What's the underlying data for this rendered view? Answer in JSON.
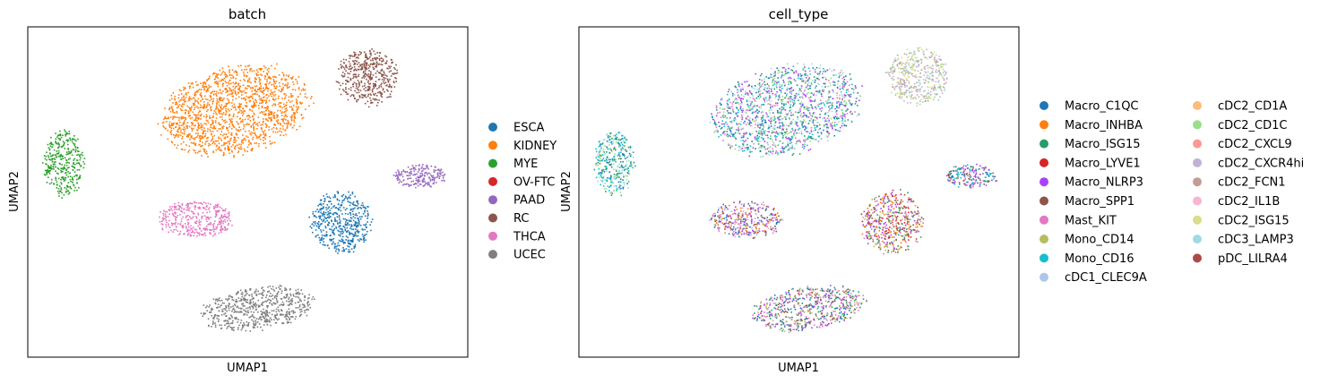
{
  "chart_data": [
    {
      "type": "scatter",
      "title": "batch",
      "xlabel": "UMAP1",
      "ylabel": "UMAP2",
      "xlim": [
        0,
        100
      ],
      "ylim": [
        0,
        100
      ],
      "legend_position": "right",
      "legend": [
        {
          "label": "ESCA",
          "color": "#1f77b4"
        },
        {
          "label": "KIDNEY",
          "color": "#ff7f0e"
        },
        {
          "label": "MYE",
          "color": "#2ca02c"
        },
        {
          "label": "OV-FTC",
          "color": "#d62728"
        },
        {
          "label": "PAAD",
          "color": "#9467bd"
        },
        {
          "label": "RC",
          "color": "#8c564b"
        },
        {
          "label": "THCA",
          "color": "#e377c2"
        },
        {
          "label": "UCEC",
          "color": "#7f7f7f"
        }
      ],
      "clusters": [
        {
          "name": "KIDNEY",
          "cx": 47,
          "cy": 75,
          "rx": 17,
          "ry": 13,
          "rot": -13,
          "colors": [
            "#ff7f0e"
          ]
        },
        {
          "name": "RC",
          "cx": 77,
          "cy": 85,
          "rx": 7,
          "ry": 8.5,
          "rot": 0,
          "colors": [
            "#8c564b"
          ]
        },
        {
          "name": "MYE",
          "cx": 8,
          "cy": 59,
          "rx": 4.5,
          "ry": 10,
          "rot": 0,
          "colors": [
            "#2ca02c"
          ]
        },
        {
          "name": "PAAD",
          "cx": 89,
          "cy": 55,
          "rx": 6,
          "ry": 3.5,
          "rot": 0,
          "colors": [
            "#9467bd"
          ]
        },
        {
          "name": "THCA",
          "cx": 38,
          "cy": 42,
          "rx": 8.5,
          "ry": 5.5,
          "rot": 0,
          "colors": [
            "#e377c2"
          ]
        },
        {
          "name": "ESCA",
          "cx": 71,
          "cy": 41,
          "rx": 7,
          "ry": 9.5,
          "rot": 10,
          "colors": [
            "#1f77b4"
          ]
        },
        {
          "name": "UCEC",
          "cx": 52,
          "cy": 15,
          "rx": 13,
          "ry": 6.5,
          "rot": -8,
          "colors": [
            "#7f7f7f"
          ]
        }
      ]
    },
    {
      "type": "scatter",
      "title": "cell_type",
      "xlabel": "UMAP1",
      "ylabel": "UMAP2",
      "xlim": [
        0,
        100
      ],
      "ylim": [
        0,
        100
      ],
      "legend_position": "right",
      "legend": [
        {
          "label": "Macro_C1QC",
          "color": "#1f77b4"
        },
        {
          "label": "Macro_INHBA",
          "color": "#ff7f0e"
        },
        {
          "label": "Macro_ISG15",
          "color": "#279e68"
        },
        {
          "label": "Macro_LYVE1",
          "color": "#d62728"
        },
        {
          "label": "Macro_NLRP3",
          "color": "#aa40fc"
        },
        {
          "label": "Macro_SPP1",
          "color": "#8c564b"
        },
        {
          "label": "Mast_KIT",
          "color": "#e377c2"
        },
        {
          "label": "Mono_CD14",
          "color": "#b5bd61"
        },
        {
          "label": "Mono_CD16",
          "color": "#17becf"
        },
        {
          "label": "cDC1_CLEC9A",
          "color": "#aec7e8"
        },
        {
          "label": "cDC2_CD1A",
          "color": "#ffbb78"
        },
        {
          "label": "cDC2_CD1C",
          "color": "#98df8a"
        },
        {
          "label": "cDC2_CXCL9",
          "color": "#ff9896"
        },
        {
          "label": "cDC2_CXCR4hi",
          "color": "#c5b0d5"
        },
        {
          "label": "cDC2_FCN1",
          "color": "#c49c94"
        },
        {
          "label": "cDC2_IL1B",
          "color": "#f7b6d2"
        },
        {
          "label": "cDC2_ISG15",
          "color": "#dbdb8d"
        },
        {
          "label": "cDC3_LAMP3",
          "color": "#9edae5"
        },
        {
          "label": "pDC_LILRA4",
          "color": "#ad494a"
        }
      ],
      "clusters": [
        {
          "name": "KIDNEY",
          "cx": 47,
          "cy": 75,
          "rx": 17,
          "ry": 13,
          "rot": -13,
          "colors": [
            "#279e68",
            "#17becf",
            "#1f77b4",
            "#98df8a",
            "#aa40fc",
            "#e377c2",
            "#9edae5"
          ]
        },
        {
          "name": "RC",
          "cx": 77,
          "cy": 85,
          "rx": 7,
          "ry": 8.5,
          "rot": 0,
          "colors": [
            "#dbdb8d",
            "#c5b0d5",
            "#98df8a",
            "#c49c94",
            "#aec7e8"
          ]
        },
        {
          "name": "MYE",
          "cx": 8,
          "cy": 59,
          "rx": 4.5,
          "ry": 10,
          "rot": 0,
          "colors": [
            "#279e68",
            "#17becf",
            "#1f77b4",
            "#98df8a",
            "#9edae5"
          ]
        },
        {
          "name": "PAAD",
          "cx": 89,
          "cy": 55,
          "rx": 6,
          "ry": 3.5,
          "rot": 0,
          "colors": [
            "#1f77b4",
            "#17becf",
            "#e377c2",
            "#aa40fc",
            "#279e68",
            "#8c564b"
          ]
        },
        {
          "name": "THCA",
          "cx": 38,
          "cy": 42,
          "rx": 8.5,
          "ry": 5.5,
          "rot": 0,
          "colors": [
            "#aa40fc",
            "#ff7f0e",
            "#1f77b4",
            "#e377c2",
            "#8c564b",
            "#c5b0d5"
          ]
        },
        {
          "name": "ESCA",
          "cx": 71,
          "cy": 41,
          "rx": 7,
          "ry": 9.5,
          "rot": 10,
          "colors": [
            "#d62728",
            "#8c564b",
            "#aa40fc",
            "#b5bd61",
            "#ff7f0e",
            "#e377c2",
            "#279e68"
          ]
        },
        {
          "name": "UCEC",
          "cx": 52,
          "cy": 15,
          "rx": 13,
          "ry": 6.5,
          "rot": -8,
          "colors": [
            "#aa40fc",
            "#c49c94",
            "#e377c2",
            "#b5bd61",
            "#279e68",
            "#1f77b4",
            "#8c564b"
          ]
        }
      ]
    }
  ]
}
